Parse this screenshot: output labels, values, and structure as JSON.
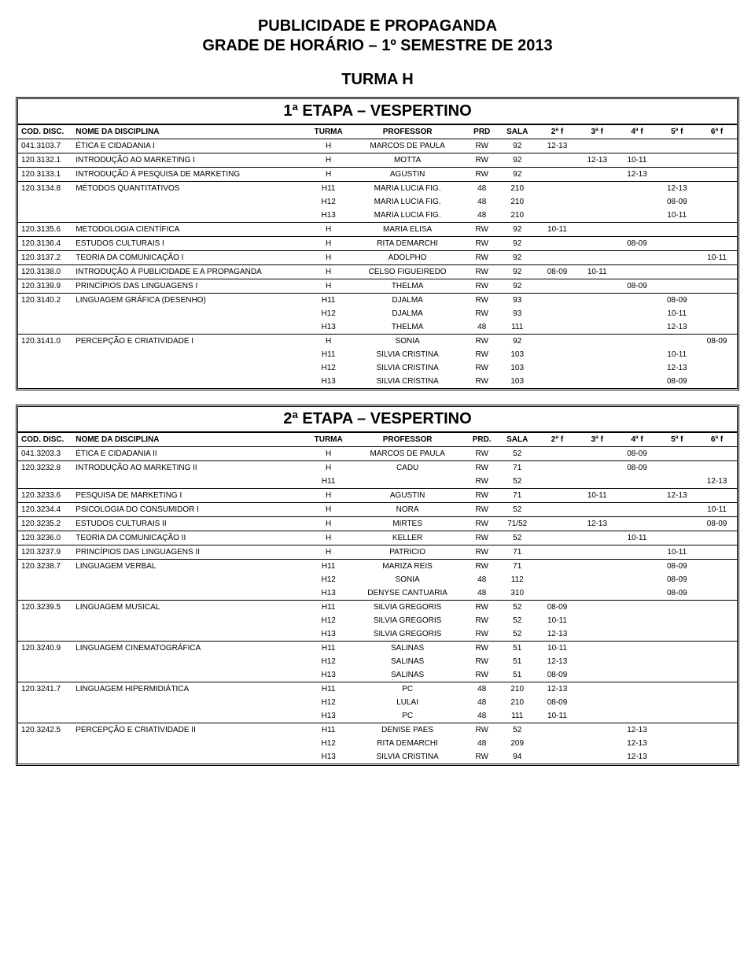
{
  "header": {
    "line1": "PUBLICIDADE E PROPAGANDA",
    "line2": "GRADE DE HORÁRIO – 1º SEMESTRE DE 2013",
    "turma": "TURMA H"
  },
  "columns": {
    "cod": "COD. DISC.",
    "name": "NOME DA DISCIPLINA",
    "turma": "TURMA",
    "prof": "PROFESSOR",
    "prd": "PRD",
    "prd2": "PRD.",
    "sala": "SALA",
    "f2": "2ª f",
    "f3": "3ª f",
    "f4": "4ª f",
    "f5": "5ª f",
    "f6": "6ª f"
  },
  "etapa1": {
    "title": "1ª ETAPA – VESPERTINO",
    "rows": [
      {
        "sep": true,
        "cod": "041.3103.7",
        "name": "ÉTICA E CIDADANIA I",
        "turma": "H",
        "prof": "MARCOS DE PAULA",
        "prd": "RW",
        "sala": "92",
        "f2": "12-13",
        "f3": "",
        "f4": "",
        "f5": "",
        "f6": ""
      },
      {
        "sep": true,
        "cod": "120.3132.1",
        "name": "INTRODUÇÃO AO MARKETING I",
        "turma": "H",
        "prof": "MOTTA",
        "prd": "RW",
        "sala": "92",
        "f2": "",
        "f3": "12-13",
        "f4": "10-11",
        "f5": "",
        "f6": ""
      },
      {
        "sep": true,
        "cod": "120.3133.1",
        "name": "INTRODUÇÃO À PESQUISA DE MARKETING",
        "turma": "H",
        "prof": "AGUSTIN",
        "prd": "RW",
        "sala": "92",
        "f2": "",
        "f3": "",
        "f4": "12-13",
        "f5": "",
        "f6": ""
      },
      {
        "sep": true,
        "cod": "120.3134.8",
        "name": "MÉTODOS QUANTITATIVOS",
        "turma": "H11",
        "prof": "MARIA LUCIA FIG.",
        "prd": "48",
        "sala": "210",
        "f2": "",
        "f3": "",
        "f4": "",
        "f5": "12-13",
        "f6": ""
      },
      {
        "sep": false,
        "cod": "",
        "name": "",
        "turma": "H12",
        "prof": "MARIA LUCIA FIG.",
        "prd": "48",
        "sala": "210",
        "f2": "",
        "f3": "",
        "f4": "",
        "f5": "08-09",
        "f6": ""
      },
      {
        "sep": false,
        "cod": "",
        "name": "",
        "turma": "H13",
        "prof": "MARIA LUCIA FIG.",
        "prd": "48",
        "sala": "210",
        "f2": "",
        "f3": "",
        "f4": "",
        "f5": "10-11",
        "f6": ""
      },
      {
        "sep": true,
        "cod": "120.3135.6",
        "name": "METODOLOGIA CIENTÍFICA",
        "turma": "H",
        "prof": "MARIA ELISA",
        "prd": "RW",
        "sala": "92",
        "f2": "10-11",
        "f3": "",
        "f4": "",
        "f5": "",
        "f6": ""
      },
      {
        "sep": true,
        "cod": "120.3136.4",
        "name": "ESTUDOS CULTURAIS I",
        "turma": "H",
        "prof": "RITA DEMARCHI",
        "prd": "RW",
        "sala": "92",
        "f2": "",
        "f3": "",
        "f4": "08-09",
        "f5": "",
        "f6": ""
      },
      {
        "sep": true,
        "cod": "120.3137.2",
        "name": "TEORIA DA COMUNICAÇÃO I",
        "turma": "H",
        "prof": "ADOLPHO",
        "prd": "RW",
        "sala": "92",
        "f2": "",
        "f3": "",
        "f4": "",
        "f5": "",
        "f6": "10-11"
      },
      {
        "sep": true,
        "cod": "120.3138.0",
        "name": "INTRODUÇÃO À PUBLICIDADE E A PROPAGANDA",
        "turma": "H",
        "prof": "CELSO FIGUEIREDO",
        "prd": "RW",
        "sala": "92",
        "f2": "08-09",
        "f3": "10-11",
        "f4": "",
        "f5": "",
        "f6": ""
      },
      {
        "sep": true,
        "cod": "120.3139.9",
        "name": "PRINCÍPIOS DAS LINGUAGENS I",
        "turma": "H",
        "prof": "THELMA",
        "prd": "RW",
        "sala": "92",
        "f2": "",
        "f3": "",
        "f4": "08-09",
        "f5": "",
        "f6": ""
      },
      {
        "sep": true,
        "cod": "120.3140.2",
        "name": "LINGUAGEM GRÁFICA (DESENHO)",
        "turma": "H11",
        "prof": "DJALMA",
        "prd": "RW",
        "sala": "93",
        "f2": "",
        "f3": "",
        "f4": "",
        "f5": "08-09",
        "f6": ""
      },
      {
        "sep": false,
        "cod": "",
        "name": "",
        "turma": "H12",
        "prof": "DJALMA",
        "prd": "RW",
        "sala": "93",
        "f2": "",
        "f3": "",
        "f4": "",
        "f5": "10-11",
        "f6": ""
      },
      {
        "sep": false,
        "cod": "",
        "name": "",
        "turma": "H13",
        "prof": "THELMA",
        "prd": "48",
        "sala": "111",
        "f2": "",
        "f3": "",
        "f4": "",
        "f5": "12-13",
        "f6": ""
      },
      {
        "sep": true,
        "cod": "120.3141.0",
        "name": "PERCEPÇÃO E CRIATIVIDADE I",
        "turma": "H",
        "prof": "SONIA",
        "prd": "RW",
        "sala": "92",
        "f2": "",
        "f3": "",
        "f4": "",
        "f5": "",
        "f6": "08-09"
      },
      {
        "sep": false,
        "cod": "",
        "name": "",
        "turma": "H11",
        "prof": "SILVIA CRISTINA",
        "prd": "RW",
        "sala": "103",
        "f2": "",
        "f3": "",
        "f4": "",
        "f5": "10-11",
        "f6": ""
      },
      {
        "sep": false,
        "cod": "",
        "name": "",
        "turma": "H12",
        "prof": "SILVIA CRISTINA",
        "prd": "RW",
        "sala": "103",
        "f2": "",
        "f3": "",
        "f4": "",
        "f5": "12-13",
        "f6": ""
      },
      {
        "sep": false,
        "cod": "",
        "name": "",
        "turma": "H13",
        "prof": "SILVIA CRISTINA",
        "prd": "RW",
        "sala": "103",
        "f2": "",
        "f3": "",
        "f4": "",
        "f5": "08-09",
        "f6": ""
      }
    ]
  },
  "etapa2": {
    "title": "2ª ETAPA – VESPERTINO",
    "rows": [
      {
        "sep": true,
        "cod": "041.3203.3",
        "name": "ÉTICA E CIDADANIA II",
        "turma": "H",
        "prof": "MARCOS DE PAULA",
        "prd": "RW",
        "sala": "52",
        "f2": "",
        "f3": "",
        "f4": "08-09",
        "f5": "",
        "f6": ""
      },
      {
        "sep": true,
        "cod": "120.3232.8",
        "name": "INTRODUÇÃO AO MARKETING II",
        "turma": "H",
        "prof": "CADU",
        "prd": "RW",
        "sala": "71",
        "f2": "",
        "f3": "",
        "f4": "08-09",
        "f5": "",
        "f6": ""
      },
      {
        "sep": false,
        "cod": "",
        "name": "",
        "turma": "H11",
        "prof": "",
        "prd": "RW",
        "sala": "52",
        "f2": "",
        "f3": "",
        "f4": "",
        "f5": "",
        "f6": "12-13"
      },
      {
        "sep": true,
        "cod": "120.3233.6",
        "name": "PESQUISA DE MARKETING I",
        "turma": "H",
        "prof": "AGUSTIN",
        "prd": "RW",
        "sala": "71",
        "f2": "",
        "f3": "10-11",
        "f4": "",
        "f5": "12-13",
        "f6": ""
      },
      {
        "sep": true,
        "cod": "120.3234.4",
        "name": "PSICOLOGIA DO CONSUMIDOR I",
        "turma": "H",
        "prof": "NORA",
        "prd": "RW",
        "sala": "52",
        "f2": "",
        "f3": "",
        "f4": "",
        "f5": "",
        "f6": "10-11"
      },
      {
        "sep": true,
        "cod": "120.3235.2",
        "name": "ESTUDOS CULTURAIS II",
        "turma": "H",
        "prof": "MIRTES",
        "prd": "RW",
        "sala": "71/52",
        "f2": "",
        "f3": "12-13",
        "f4": "",
        "f5": "",
        "f6": "08-09"
      },
      {
        "sep": true,
        "cod": "120.3236.0",
        "name": "TEORIA DA COMUNICAÇÃO II",
        "turma": "H",
        "prof": "KELLER",
        "prd": "RW",
        "sala": "52",
        "f2": "",
        "f3": "",
        "f4": "10-11",
        "f5": "",
        "f6": ""
      },
      {
        "sep": true,
        "cod": "120.3237.9",
        "name": "PRINCÍPIOS DAS LINGUAGENS II",
        "turma": "H",
        "prof": "PATRICIO",
        "prd": "RW",
        "sala": "71",
        "f2": "",
        "f3": "",
        "f4": "",
        "f5": "10-11",
        "f6": ""
      },
      {
        "sep": true,
        "cod": "120.3238.7",
        "name": "LINGUAGEM VERBAL",
        "turma": "H11",
        "prof": "MARIZA REIS",
        "prd": "RW",
        "sala": "71",
        "f2": "",
        "f3": "",
        "f4": "",
        "f5": "08-09",
        "f6": ""
      },
      {
        "sep": false,
        "cod": "",
        "name": "",
        "turma": "H12",
        "prof": "SONIA",
        "prd": "48",
        "sala": "112",
        "f2": "",
        "f3": "",
        "f4": "",
        "f5": "08-09",
        "f6": ""
      },
      {
        "sep": false,
        "cod": "",
        "name": "",
        "turma": "H13",
        "prof": "DENYSE CANTUARIA",
        "prd": "48",
        "sala": "310",
        "f2": "",
        "f3": "",
        "f4": "",
        "f5": "08-09",
        "f6": ""
      },
      {
        "sep": true,
        "cod": "120.3239.5",
        "name": "LINGUAGEM MUSICAL",
        "turma": "H11",
        "prof": "SILVIA GREGORIS",
        "prd": "RW",
        "sala": "52",
        "f2": "08-09",
        "f3": "",
        "f4": "",
        "f5": "",
        "f6": ""
      },
      {
        "sep": false,
        "cod": "",
        "name": "",
        "turma": "H12",
        "prof": "SILVIA GREGORIS",
        "prd": "RW",
        "sala": "52",
        "f2": "10-11",
        "f3": "",
        "f4": "",
        "f5": "",
        "f6": ""
      },
      {
        "sep": false,
        "cod": "",
        "name": "",
        "turma": "H13",
        "prof": "SILVIA GREGORIS",
        "prd": "RW",
        "sala": "52",
        "f2": "12-13",
        "f3": "",
        "f4": "",
        "f5": "",
        "f6": ""
      },
      {
        "sep": true,
        "cod": "120.3240.9",
        "name": "LINGUAGEM CINEMATOGRÁFICA",
        "turma": "H11",
        "prof": "SALINAS",
        "prd": "RW",
        "sala": "51",
        "f2": "10-11",
        "f3": "",
        "f4": "",
        "f5": "",
        "f6": ""
      },
      {
        "sep": false,
        "cod": "",
        "name": "",
        "turma": "H12",
        "prof": "SALINAS",
        "prd": "RW",
        "sala": "51",
        "f2": "12-13",
        "f3": "",
        "f4": "",
        "f5": "",
        "f6": ""
      },
      {
        "sep": false,
        "cod": "",
        "name": "",
        "turma": "H13",
        "prof": "SALINAS",
        "prd": "RW",
        "sala": "51",
        "f2": "08-09",
        "f3": "",
        "f4": "",
        "f5": "",
        "f6": ""
      },
      {
        "sep": true,
        "cod": "120.3241.7",
        "name": "LINGUAGEM HIPERMIDIÁTICA",
        "turma": "H11",
        "prof": "PC",
        "prd": "48",
        "sala": "210",
        "f2": "12-13",
        "f3": "",
        "f4": "",
        "f5": "",
        "f6": ""
      },
      {
        "sep": false,
        "cod": "",
        "name": "",
        "turma": "H12",
        "prof": "LULAI",
        "prd": "48",
        "sala": "210",
        "f2": "08-09",
        "f3": "",
        "f4": "",
        "f5": "",
        "f6": ""
      },
      {
        "sep": false,
        "cod": "",
        "name": "",
        "turma": "H13",
        "prof": "PC",
        "prd": "48",
        "sala": "111",
        "f2": "10-11",
        "f3": "",
        "f4": "",
        "f5": "",
        "f6": ""
      },
      {
        "sep": true,
        "cod": "120.3242.5",
        "name": "PERCEPÇÃO E CRIATIVIDADE II",
        "turma": "H11",
        "prof": "DENISE PAES",
        "prd": "RW",
        "sala": "52",
        "f2": "",
        "f3": "",
        "f4": "12-13",
        "f5": "",
        "f6": ""
      },
      {
        "sep": false,
        "cod": "",
        "name": "",
        "turma": "H12",
        "prof": "RITA DEMARCHI",
        "prd": "48",
        "sala": "209",
        "f2": "",
        "f3": "",
        "f4": "12-13",
        "f5": "",
        "f6": ""
      },
      {
        "sep": false,
        "cod": "",
        "name": "",
        "turma": "H13",
        "prof": "SILVIA CRISTINA",
        "prd": "RW",
        "sala": "94",
        "f2": "",
        "f3": "",
        "f4": "12-13",
        "f5": "",
        "f6": ""
      }
    ]
  }
}
